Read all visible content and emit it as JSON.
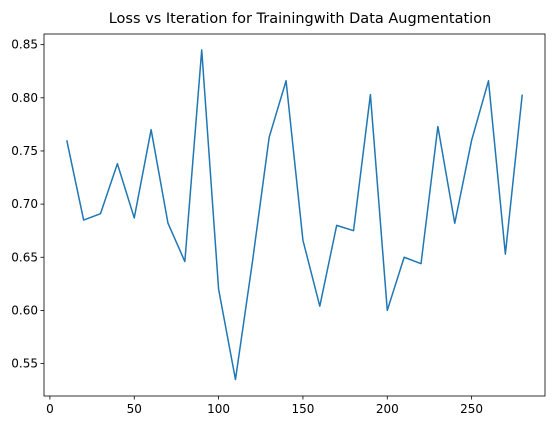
{
  "chart_data": {
    "type": "line",
    "title": "Loss vs Iteration for Trainingwith Data Augmentation",
    "xlabel": "",
    "ylabel": "",
    "xlim": [
      -3.5,
      293.5
    ],
    "ylim": [
      0.5195,
      0.86
    ],
    "x_ticks": [
      0,
      50,
      100,
      150,
      200,
      250
    ],
    "y_ticks": [
      0.55,
      0.6,
      0.65,
      0.7,
      0.75,
      0.8,
      0.85
    ],
    "grid": false,
    "legend": "none",
    "series": [
      {
        "color": "#1f77b4",
        "x": [
          10,
          20,
          30,
          40,
          50,
          60,
          70,
          80,
          90,
          100,
          110,
          120,
          130,
          140,
          150,
          160,
          170,
          180,
          190,
          200,
          210,
          220,
          230,
          240,
          250,
          260,
          270,
          280
        ],
        "y": [
          0.76,
          0.685,
          0.691,
          0.738,
          0.687,
          0.77,
          0.682,
          0.646,
          0.845,
          0.62,
          0.535,
          0.645,
          0.763,
          0.816,
          0.666,
          0.604,
          0.68,
          0.675,
          0.803,
          0.6,
          0.65,
          0.644,
          0.773,
          0.682,
          0.76,
          0.816,
          0.653,
          0.803
        ]
      }
    ]
  }
}
